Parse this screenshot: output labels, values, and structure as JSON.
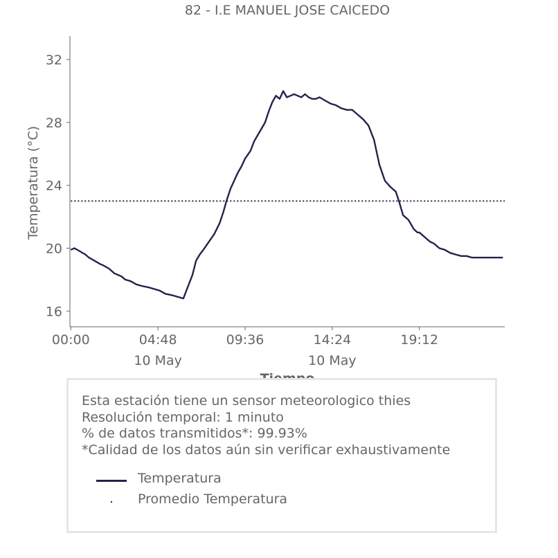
{
  "chart_data": {
    "type": "line",
    "title": "82 - I.E MANUEL JOSE CAICEDO",
    "xlabel": "Tiempo",
    "ylabel": "Temperatura (°C)",
    "xlim": [
      -0.05,
      23.9
    ],
    "ylim": [
      15.0,
      33.5
    ],
    "yticks": [
      16,
      20,
      24,
      28,
      32
    ],
    "xticks": [
      {
        "x": 0.0,
        "label": "00:00",
        "sublabel": ""
      },
      {
        "x": 4.8,
        "label": "04:48",
        "sublabel": "10 May"
      },
      {
        "x": 9.6,
        "label": "09:36",
        "sublabel": ""
      },
      {
        "x": 14.4,
        "label": "14:24",
        "sublabel": "10 May"
      },
      {
        "x": 19.2,
        "label": "19:12",
        "sublabel": ""
      }
    ],
    "grid": false,
    "series": [
      {
        "name": "Temperatura",
        "style": "solid",
        "color": "#23234a",
        "x": [
          0.0,
          0.2,
          0.5,
          0.8,
          1.0,
          1.3,
          1.6,
          1.8,
          2.1,
          2.4,
          2.8,
          3.0,
          3.3,
          3.6,
          3.9,
          4.3,
          4.6,
          4.9,
          5.2,
          5.6,
          5.9,
          6.2,
          6.4,
          6.7,
          6.9,
          7.1,
          7.3,
          7.6,
          7.9,
          8.2,
          8.4,
          8.6,
          8.8,
          9.0,
          9.2,
          9.4,
          9.6,
          9.9,
          10.1,
          10.4,
          10.7,
          10.9,
          11.1,
          11.3,
          11.5,
          11.7,
          11.9,
          12.1,
          12.3,
          12.5,
          12.7,
          12.9,
          13.1,
          13.3,
          13.5,
          13.7,
          14.0,
          14.3,
          14.6,
          14.9,
          15.2,
          15.5,
          15.8,
          16.1,
          16.4,
          16.7,
          17.0,
          17.3,
          17.6,
          17.9,
          18.1,
          18.3,
          18.6,
          18.9,
          19.1,
          19.2,
          19.4,
          19.6,
          19.8,
          20.0,
          20.3,
          20.6,
          20.9,
          21.2,
          21.5,
          21.8,
          22.1,
          22.4,
          22.7,
          23.0,
          23.3,
          23.6,
          23.8
        ],
        "values": [
          19.9,
          20.0,
          19.8,
          19.6,
          19.4,
          19.2,
          19.0,
          18.9,
          18.7,
          18.4,
          18.2,
          18.0,
          17.9,
          17.7,
          17.6,
          17.5,
          17.4,
          17.3,
          17.1,
          17.0,
          16.9,
          16.8,
          17.4,
          18.3,
          19.2,
          19.6,
          19.9,
          20.4,
          20.9,
          21.6,
          22.3,
          23.1,
          23.8,
          24.3,
          24.8,
          25.2,
          25.7,
          26.2,
          26.8,
          27.4,
          28.0,
          28.7,
          29.3,
          29.7,
          29.5,
          30.0,
          29.6,
          29.7,
          29.8,
          29.7,
          29.6,
          29.8,
          29.6,
          29.5,
          29.5,
          29.6,
          29.4,
          29.2,
          29.1,
          28.9,
          28.8,
          28.8,
          28.5,
          28.2,
          27.8,
          26.9,
          25.3,
          24.3,
          23.9,
          23.6,
          22.9,
          22.1,
          21.8,
          21.2,
          21.0,
          21.0,
          20.8,
          20.6,
          20.4,
          20.3,
          20.0,
          19.9,
          19.7,
          19.6,
          19.5,
          19.5,
          19.4,
          19.4,
          19.4,
          19.4,
          19.4,
          19.4,
          19.4
        ]
      },
      {
        "name": "Promedio Temperatura",
        "style": "dotted",
        "color": "#23234a",
        "x": [
          0.0,
          23.9
        ],
        "values": [
          23.0,
          23.0
        ]
      }
    ]
  },
  "info": {
    "lines": [
      "Esta estación tiene un sensor meteorologico thies",
      "Resolución temporal: 1 minuto",
      "% de datos transmitidos*: 99.93%",
      "*Calidad de los datos aún sin verificar exhaustivamente"
    ]
  },
  "legend": {
    "items": [
      {
        "label": "Temperatura",
        "swatch": "line"
      },
      {
        "label": "Promedio Temperatura",
        "swatch": "dot"
      }
    ]
  },
  "colors": {
    "line": "#23234a",
    "text": "#666666",
    "axis": "#666666",
    "box_border": "#e6e6e6"
  }
}
